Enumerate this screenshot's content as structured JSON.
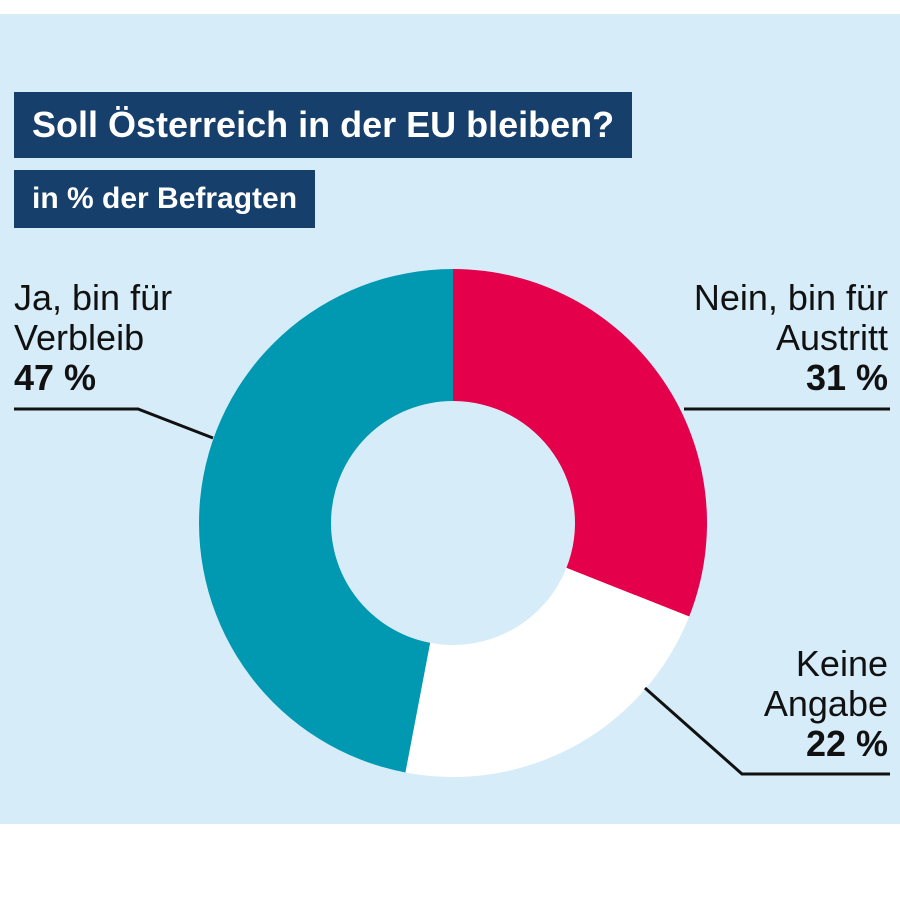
{
  "chart_data": {
    "type": "pie",
    "title": "Soll Österreich in der EU bleiben?",
    "subtitle": "in % der Befragten",
    "donut": true,
    "slices": [
      {
        "label": "Nein, bin für Austritt",
        "value": 31,
        "value_label": "31 %",
        "color": "#e4004b"
      },
      {
        "label": "Keine Angabe",
        "value": 22,
        "value_label": "22 %",
        "color": "#ffffff"
      },
      {
        "label": "Ja, bin für Verbleib",
        "value": 47,
        "value_label": "47 %",
        "color": "#0198b1"
      }
    ]
  },
  "colors": {
    "background": "#d6edf9",
    "title_box": "#173f6b",
    "leader_line": "#111111"
  }
}
